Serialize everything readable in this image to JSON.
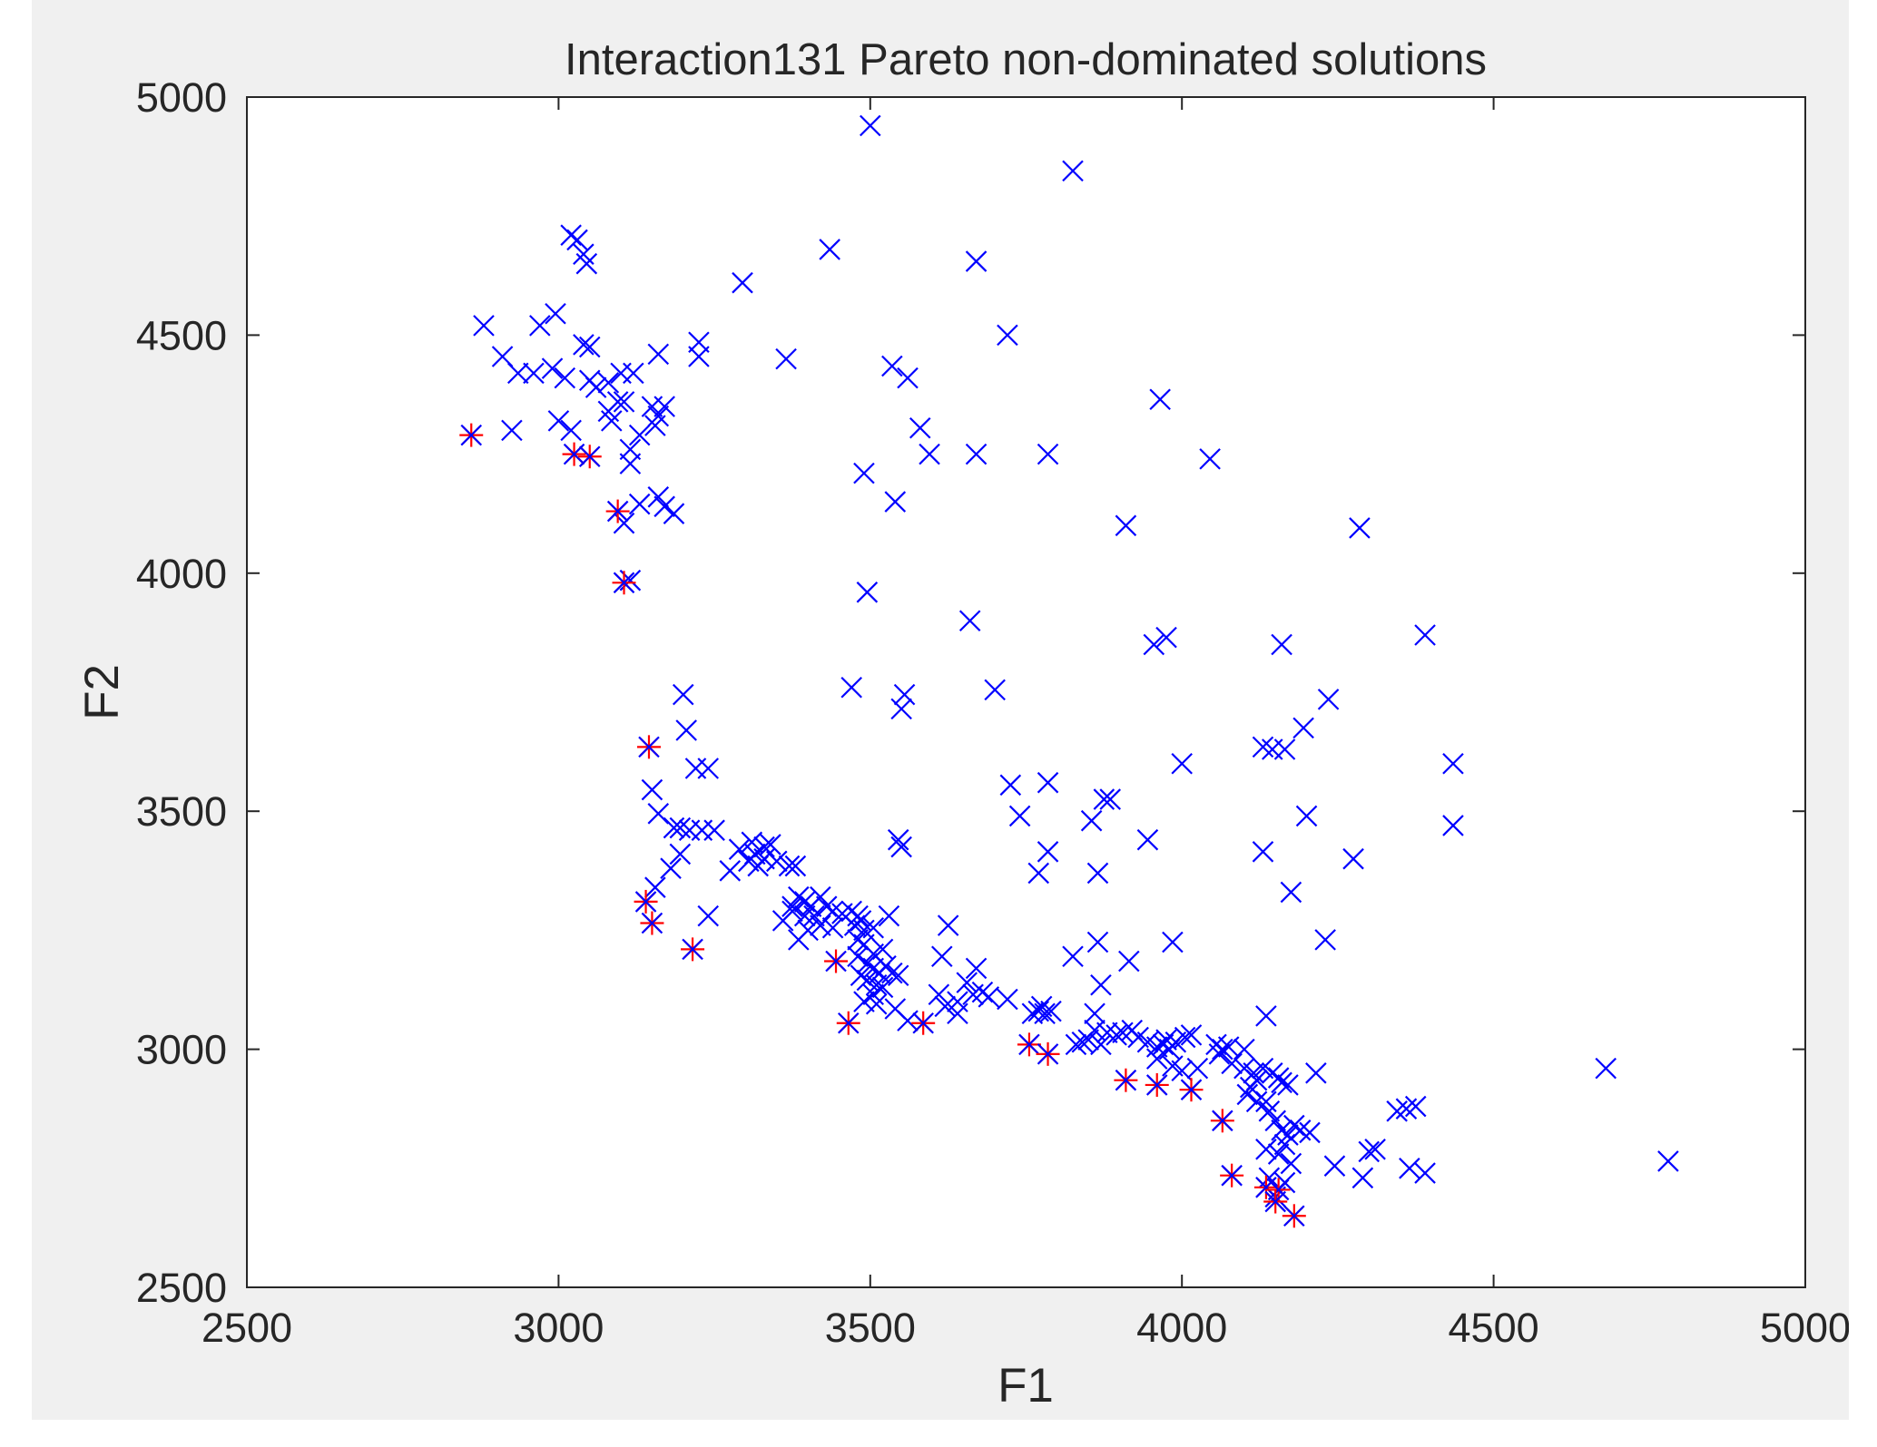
{
  "chart_data": {
    "type": "scatter",
    "title": "Interaction131 Pareto non-dominated solutions",
    "xlabel": "F1",
    "ylabel": "F2",
    "xlim": [
      2500,
      5000
    ],
    "ylim": [
      2500,
      5000
    ],
    "xticks": [
      "2500",
      "3000",
      "3500",
      "4000",
      "4500",
      "5000"
    ],
    "yticks": [
      "2500",
      "3000",
      "3500",
      "4000",
      "4500",
      "5000"
    ],
    "grid": false,
    "legend": null,
    "series": [
      {
        "marker": "x",
        "color": "#0000ff",
        "points": [
          [
            3500,
            4940
          ],
          [
            3825,
            4845
          ],
          [
            3020,
            4710
          ],
          [
            3030,
            4700
          ],
          [
            3040,
            4670
          ],
          [
            3045,
            4650
          ],
          [
            3435,
            4680
          ],
          [
            3670,
            4655
          ],
          [
            3295,
            4610
          ],
          [
            2880,
            4520
          ],
          [
            2970,
            4520
          ],
          [
            2995,
            4545
          ],
          [
            3720,
            4500
          ],
          [
            3040,
            4480
          ],
          [
            3050,
            4475
          ],
          [
            3225,
            4485
          ],
          [
            3225,
            4455
          ],
          [
            3160,
            4460
          ],
          [
            3365,
            4450
          ],
          [
            2910,
            4455
          ],
          [
            2935,
            4420
          ],
          [
            2960,
            4420
          ],
          [
            2990,
            4430
          ],
          [
            3010,
            4410
          ],
          [
            3080,
            4400
          ],
          [
            3100,
            4420
          ],
          [
            3120,
            4420
          ],
          [
            3050,
            4405
          ],
          [
            3060,
            4390
          ],
          [
            3080,
            4340
          ],
          [
            3095,
            4360
          ],
          [
            3105,
            4360
          ],
          [
            3085,
            4320
          ],
          [
            3150,
            4350
          ],
          [
            3170,
            4350
          ],
          [
            3160,
            4330
          ],
          [
            3155,
            4310
          ],
          [
            3535,
            4435
          ],
          [
            3560,
            4410
          ],
          [
            3965,
            4365
          ],
          [
            3000,
            4320
          ],
          [
            3020,
            4300
          ],
          [
            2925,
            4300
          ],
          [
            3115,
            4260
          ],
          [
            3130,
            4290
          ],
          [
            3115,
            4230
          ],
          [
            3580,
            4305
          ],
          [
            3595,
            4250
          ],
          [
            3670,
            4250
          ],
          [
            3785,
            4250
          ],
          [
            4045,
            4240
          ],
          [
            3490,
            4210
          ],
          [
            3130,
            4145
          ],
          [
            3160,
            4160
          ],
          [
            3170,
            4140
          ],
          [
            3185,
            4125
          ],
          [
            3540,
            4150
          ],
          [
            3105,
            4105
          ],
          [
            3910,
            4100
          ],
          [
            4285,
            4095
          ],
          [
            3115,
            3985
          ],
          [
            3495,
            3960
          ],
          [
            3660,
            3900
          ],
          [
            3955,
            3850
          ],
          [
            3975,
            3865
          ],
          [
            4160,
            3850
          ],
          [
            4390,
            3870
          ],
          [
            3470,
            3760
          ],
          [
            3555,
            3745
          ],
          [
            3550,
            3715
          ],
          [
            3700,
            3755
          ],
          [
            3200,
            3745
          ],
          [
            4235,
            3735
          ],
          [
            3205,
            3670
          ],
          [
            4195,
            3675
          ],
          [
            4130,
            3635
          ],
          [
            4145,
            3630
          ],
          [
            4165,
            3630
          ],
          [
            4000,
            3600
          ],
          [
            4435,
            3600
          ],
          [
            3220,
            3590
          ],
          [
            3240,
            3590
          ],
          [
            3725,
            3555
          ],
          [
            3785,
            3560
          ],
          [
            3150,
            3545
          ],
          [
            3160,
            3495
          ],
          [
            3875,
            3525
          ],
          [
            3885,
            3525
          ],
          [
            4200,
            3490
          ],
          [
            3740,
            3490
          ],
          [
            3855,
            3480
          ],
          [
            3185,
            3465
          ],
          [
            3195,
            3465
          ],
          [
            3210,
            3460
          ],
          [
            3230,
            3460
          ],
          [
            3250,
            3460
          ],
          [
            4435,
            3470
          ],
          [
            3545,
            3440
          ],
          [
            3550,
            3425
          ],
          [
            3945,
            3440
          ],
          [
            3290,
            3420
          ],
          [
            3310,
            3435
          ],
          [
            3330,
            3425
          ],
          [
            3340,
            3430
          ],
          [
            3315,
            3410
          ],
          [
            3330,
            3400
          ],
          [
            3305,
            3395
          ],
          [
            3320,
            3385
          ],
          [
            3350,
            3395
          ],
          [
            3370,
            3385
          ],
          [
            3380,
            3385
          ],
          [
            3785,
            3415
          ],
          [
            4130,
            3415
          ],
          [
            4275,
            3400
          ],
          [
            3275,
            3375
          ],
          [
            3770,
            3370
          ],
          [
            3865,
            3370
          ],
          [
            3195,
            3410
          ],
          [
            3180,
            3380
          ],
          [
            3155,
            3340
          ],
          [
            3385,
            3320
          ],
          [
            3360,
            3270
          ],
          [
            3375,
            3300
          ],
          [
            3395,
            3310
          ],
          [
            3405,
            3300
          ],
          [
            3420,
            3320
          ],
          [
            3430,
            3300
          ],
          [
            3375,
            3290
          ],
          [
            3395,
            3280
          ],
          [
            3410,
            3280
          ],
          [
            3440,
            3290
          ],
          [
            3455,
            3285
          ],
          [
            3470,
            3290
          ],
          [
            3480,
            3280
          ],
          [
            3485,
            3270
          ],
          [
            3475,
            3260
          ],
          [
            3490,
            3250
          ],
          [
            3505,
            3255
          ],
          [
            3240,
            3280
          ],
          [
            3530,
            3280
          ],
          [
            3625,
            3260
          ],
          [
            4175,
            3330
          ],
          [
            3400,
            3250
          ],
          [
            3420,
            3260
          ],
          [
            3440,
            3255
          ],
          [
            3385,
            3230
          ],
          [
            3985,
            3225
          ],
          [
            3865,
            3225
          ],
          [
            4230,
            3230
          ],
          [
            3480,
            3230
          ],
          [
            3490,
            3220
          ],
          [
            3505,
            3200
          ],
          [
            3520,
            3210
          ],
          [
            3480,
            3195
          ],
          [
            3495,
            3180
          ],
          [
            3505,
            3170
          ],
          [
            3515,
            3160
          ],
          [
            3525,
            3175
          ],
          [
            3535,
            3160
          ],
          [
            3545,
            3155
          ],
          [
            3485,
            3155
          ],
          [
            3495,
            3145
          ],
          [
            3510,
            3135
          ],
          [
            3520,
            3130
          ],
          [
            3505,
            3115
          ],
          [
            3615,
            3195
          ],
          [
            3670,
            3170
          ],
          [
            3825,
            3195
          ],
          [
            3915,
            3185
          ],
          [
            3490,
            3100
          ],
          [
            3510,
            3095
          ],
          [
            3540,
            3085
          ],
          [
            3560,
            3060
          ],
          [
            3610,
            3115
          ],
          [
            3620,
            3090
          ],
          [
            3640,
            3100
          ],
          [
            3655,
            3140
          ],
          [
            3665,
            3115
          ],
          [
            3680,
            3120
          ],
          [
            3690,
            3110
          ],
          [
            3720,
            3105
          ],
          [
            3760,
            3075
          ],
          [
            3770,
            3080
          ],
          [
            3780,
            3075
          ],
          [
            3775,
            3090
          ],
          [
            3790,
            3080
          ],
          [
            3640,
            3075
          ],
          [
            3860,
            3075
          ],
          [
            3870,
            3135
          ],
          [
            3850,
            3020
          ],
          [
            3860,
            3040
          ],
          [
            3870,
            3010
          ],
          [
            3880,
            3035
          ],
          [
            3895,
            3030
          ],
          [
            3905,
            3035
          ],
          [
            3840,
            3015
          ],
          [
            3830,
            3010
          ],
          [
            3920,
            3040
          ],
          [
            3930,
            3025
          ],
          [
            3945,
            3015
          ],
          [
            3960,
            3005
          ],
          [
            3970,
            3010
          ],
          [
            3980,
            3000
          ],
          [
            3975,
            3020
          ],
          [
            3990,
            3015
          ],
          [
            4005,
            3025
          ],
          [
            4015,
            3030
          ],
          [
            4055,
            3010
          ],
          [
            4065,
            3000
          ],
          [
            4075,
            3005
          ],
          [
            4060,
            2990
          ],
          [
            4100,
            3000
          ],
          [
            4135,
            3070
          ],
          [
            3960,
            2980
          ],
          [
            3985,
            2965
          ],
          [
            4000,
            2955
          ],
          [
            4025,
            2960
          ],
          [
            4080,
            2970
          ],
          [
            4100,
            2960
          ],
          [
            4115,
            2950
          ],
          [
            4130,
            2960
          ],
          [
            4145,
            2950
          ],
          [
            4155,
            2940
          ],
          [
            4160,
            2930
          ],
          [
            4170,
            2925
          ],
          [
            4120,
            2935
          ],
          [
            4110,
            2920
          ],
          [
            4105,
            2905
          ],
          [
            4120,
            2890
          ],
          [
            4135,
            2890
          ],
          [
            4140,
            2870
          ],
          [
            4150,
            2850
          ],
          [
            4160,
            2830
          ],
          [
            4170,
            2820
          ],
          [
            4180,
            2840
          ],
          [
            4190,
            2830
          ],
          [
            4205,
            2825
          ],
          [
            4165,
            2800
          ],
          [
            4155,
            2780
          ],
          [
            4135,
            2790
          ],
          [
            4175,
            2760
          ],
          [
            4165,
            2720
          ],
          [
            4215,
            2950
          ],
          [
            4245,
            2755
          ],
          [
            4290,
            2730
          ],
          [
            4300,
            2785
          ],
          [
            4310,
            2790
          ],
          [
            4345,
            2870
          ],
          [
            4360,
            2875
          ],
          [
            4375,
            2880
          ],
          [
            4365,
            2750
          ],
          [
            4390,
            2740
          ],
          [
            4150,
            2690
          ],
          [
            4140,
            2730
          ],
          [
            4680,
            2960
          ],
          [
            4780,
            2765
          ]
        ]
      },
      {
        "marker": "*",
        "color": "#ff0000",
        "overlay_marker": "x",
        "overlay_color": "#0000ff",
        "points": [
          [
            2860,
            4290
          ],
          [
            3025,
            4250
          ],
          [
            3050,
            4245
          ],
          [
            3095,
            4130
          ],
          [
            3105,
            3980
          ],
          [
            3145,
            3635
          ],
          [
            3140,
            3310
          ],
          [
            3150,
            3265
          ],
          [
            3215,
            3210
          ],
          [
            3445,
            3185
          ],
          [
            3465,
            3055
          ],
          [
            3585,
            3055
          ],
          [
            3755,
            3010
          ],
          [
            3785,
            2990
          ],
          [
            3910,
            2935
          ],
          [
            3960,
            2925
          ],
          [
            4015,
            2915
          ],
          [
            4065,
            2850
          ],
          [
            4080,
            2735
          ],
          [
            4135,
            2710
          ],
          [
            4155,
            2705
          ],
          [
            4150,
            2680
          ],
          [
            4180,
            2650
          ]
        ]
      }
    ]
  }
}
